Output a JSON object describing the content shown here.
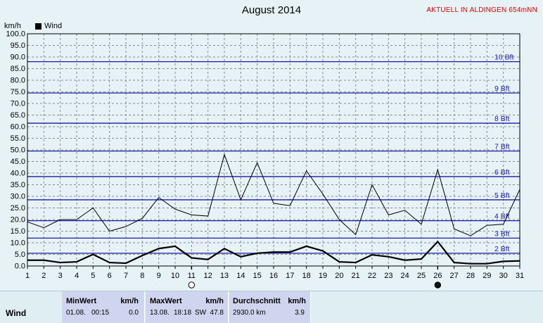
{
  "header": {
    "title": "August 2014",
    "station": "AKTUELL IN ALDINGEN 654mNN",
    "unit": "km/h"
  },
  "chart_data": {
    "type": "line",
    "title": "August 2014",
    "ylabel": "km/h",
    "xlabel": "",
    "ylim": [
      0,
      100
    ],
    "y_ticks": [
      "0.0",
      "5.0",
      "10.0",
      "15.0",
      "20.0",
      "25.0",
      "30.0",
      "35.0",
      "40.0",
      "45.0",
      "50.0",
      "55.0",
      "60.0",
      "65.0",
      "70.0",
      "75.0",
      "80.0",
      "85.0",
      "90.0",
      "95.0",
      "100.0"
    ],
    "x": [
      1,
      2,
      3,
      4,
      5,
      6,
      7,
      8,
      9,
      10,
      11,
      12,
      13,
      14,
      15,
      16,
      17,
      18,
      19,
      20,
      21,
      22,
      23,
      24,
      25,
      26,
      27,
      28,
      29,
      30,
      31
    ],
    "legend": [
      "Wind"
    ],
    "legend_position": "top-left",
    "grid": true,
    "series": [
      {
        "name": "Wind",
        "values": [
          2.5,
          2.5,
          1.5,
          1.8,
          5.0,
          1.5,
          1.2,
          4.5,
          7.5,
          8.5,
          3.5,
          2.8,
          7.5,
          4.0,
          5.5,
          6.0,
          6.0,
          8.5,
          6.5,
          1.8,
          1.5,
          4.8,
          4.0,
          2.5,
          3.0,
          10.5,
          1.5,
          1.0,
          1.0,
          2.0,
          2.2
        ]
      },
      {
        "values": [
          19.0,
          16.5,
          20.0,
          20.0,
          25.0,
          15.0,
          17.0,
          20.5,
          29.5,
          24.5,
          22.0,
          21.5,
          48.0,
          28.5,
          44.5,
          27.0,
          26.0,
          41.0,
          31.0,
          20.0,
          13.5,
          35.0,
          22.0,
          24.0,
          18.0,
          41.5,
          16.0,
          13.0,
          17.5,
          18.0,
          33.0
        ]
      }
    ],
    "beaufort": [
      {
        "label": "2 Bft",
        "value": 5.5
      },
      {
        "label": "3 Bft",
        "value": 12.0
      },
      {
        "label": "4 Bft",
        "value": 19.5
      },
      {
        "label": "5 Bft",
        "value": 28.5
      },
      {
        "label": "6 Bft",
        "value": 38.5
      },
      {
        "label": "7 Bft",
        "value": 49.5
      },
      {
        "label": "8 Bft",
        "value": 61.5
      },
      {
        "label": "9 Bft",
        "value": 74.5
      },
      {
        "label": "10 Bft",
        "value": 88.0
      }
    ],
    "moon_phases": [
      {
        "day": 11,
        "phase": "full"
      },
      {
        "day": 26,
        "phase": "new"
      }
    ]
  },
  "colors": {
    "background": "#e6f2f5",
    "grid": "#8a8a8a",
    "beaufort_line": "#1a1aa8",
    "beaufort_text": "#1a1aa8",
    "station_text": "#e00000",
    "series": "#000000",
    "stats_panel": "#cfd5ee"
  },
  "stats": {
    "row_label": "Wind",
    "min": {
      "header": "MinWert",
      "unit": "km/h",
      "date": "01.08.",
      "time": "00:15",
      "value": "0.0"
    },
    "max": {
      "header": "MaxWert",
      "unit": "km/h",
      "date": "13.08.",
      "time": "18:18",
      "dir": "SW",
      "value": "47.8"
    },
    "avg": {
      "header": "Durchschnitt",
      "unit": "km/h",
      "distance": "2930.0 km",
      "value": "3.9"
    }
  }
}
